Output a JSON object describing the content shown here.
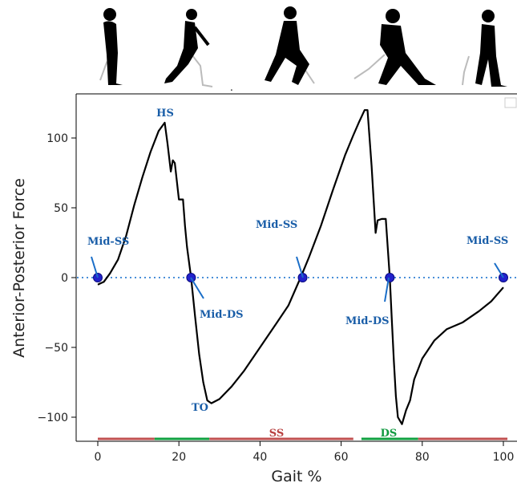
{
  "chart_data": {
    "type": "line",
    "title": "",
    "xlabel": "Gait %",
    "ylabel": "Anterior-Posterior Force",
    "xlim": [
      -3,
      102
    ],
    "ylim": [
      -115,
      130
    ],
    "xticks": [
      0,
      20,
      40,
      60,
      80,
      100
    ],
    "yticks": [
      -100,
      -50,
      0,
      50,
      100
    ],
    "grid": false,
    "reference_line": {
      "y": 0,
      "style": "dotted",
      "color": "#4a90d9"
    },
    "series": [
      {
        "color": "#000000",
        "x": [
          0,
          1.5,
          3,
          5,
          7,
          9,
          11,
          13,
          15,
          16.5,
          17.2,
          18,
          18.5,
          19,
          20,
          20.5,
          21,
          21.5,
          22,
          23,
          24,
          25,
          26,
          27,
          28,
          30,
          33,
          36,
          40,
          44,
          47,
          50,
          52,
          55,
          58,
          61,
          63,
          64.5,
          65.8,
          66.5,
          67.5,
          68.5,
          69,
          70,
          71,
          72,
          72.5,
          73,
          73.5,
          74,
          75,
          76,
          77,
          78,
          80,
          83,
          86,
          90,
          94,
          97,
          100
        ],
        "y": [
          -5,
          -3,
          3,
          13,
          30,
          52,
          72,
          90,
          105,
          111,
          96,
          76,
          84,
          82,
          56,
          56,
          56,
          37,
          22,
          0,
          -28,
          -55,
          -75,
          -88,
          -90,
          -87,
          -78,
          -67,
          -50,
          -33,
          -20,
          0,
          14,
          37,
          63,
          88,
          102,
          112,
          120,
          120,
          80,
          32,
          41,
          42,
          42,
          0,
          -30,
          -60,
          -85,
          -100,
          -105,
          -95,
          -88,
          -73,
          -58,
          -45,
          -37,
          -32,
          -24,
          -17,
          -7
        ]
      }
    ],
    "markers": {
      "color": "#2222cc",
      "points": [
        {
          "x": 0,
          "y": 0
        },
        {
          "x": 23,
          "y": 0
        },
        {
          "x": 50.5,
          "y": 0
        },
        {
          "x": 72,
          "y": 0
        },
        {
          "x": 100,
          "y": 0
        }
      ]
    },
    "annotations": [
      {
        "text": "HS",
        "x": 16.5,
        "y": 114,
        "color": "#1a5ea8"
      },
      {
        "text": "Mid-SS",
        "x": 0,
        "y": 10,
        "color": "#1a5ea8"
      },
      {
        "text": "Mid-DS",
        "x": 23,
        "y": 0,
        "color": "#1a5ea8"
      },
      {
        "text": "TO",
        "x": 28,
        "y": -90,
        "color": "#1a5ea8"
      },
      {
        "text": "Mid-SS",
        "x": 50.5,
        "y": 10,
        "color": "#1a5ea8"
      },
      {
        "text": "Mid-DS",
        "x": 72,
        "y": 0,
        "color": "#1a5ea8"
      },
      {
        "text": "Mid-SS",
        "x": 100,
        "y": 10,
        "color": "#1a5ea8"
      },
      {
        "text": "SS",
        "x": 44,
        "y": -110,
        "color": "#b84040"
      },
      {
        "text": "DS",
        "x": 72.5,
        "y": -110,
        "color": "#109a40"
      }
    ],
    "phase_bars": [
      {
        "start": 0,
        "end": 14,
        "color": "#c05050"
      },
      {
        "start": 14,
        "end": 27.5,
        "color": "#10a040"
      },
      {
        "start": 27.5,
        "end": 63,
        "color": "#c05050"
      },
      {
        "start": 65,
        "end": 79,
        "color": "#10a040"
      },
      {
        "start": 79,
        "end": 101,
        "color": "#c05050"
      }
    ]
  },
  "illustrations": [
    "walking-figure-icon",
    "walking-figure-icon",
    "walking-figure-icon",
    "walking-figure-icon",
    "walking-figure-icon"
  ]
}
